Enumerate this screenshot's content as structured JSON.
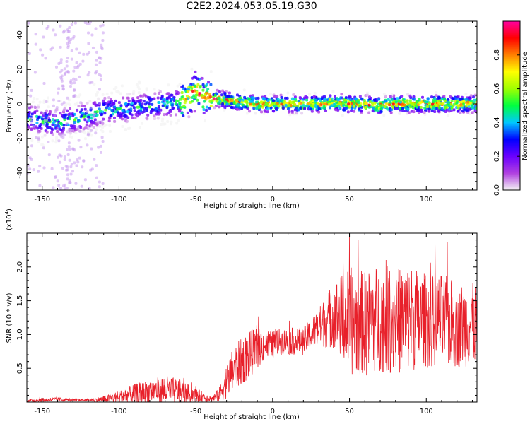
{
  "page_title": "C2E2.2024.053.05.19.G30",
  "colors": {
    "snr_line": "#e8202a",
    "axis": "#000000"
  },
  "chart_data": [
    {
      "type": "heatmap",
      "title": "",
      "xlabel": "Height of straight line (km)",
      "ylabel": "Frequency (Hz)",
      "xlim": [
        -160,
        133
      ],
      "ylim": [
        -50,
        48
      ],
      "xticks": [
        -150,
        -100,
        -50,
        0,
        50,
        100
      ],
      "yticks": [
        -40,
        -20,
        0,
        20,
        40
      ],
      "ridge": {
        "x": [
          -160,
          -150,
          -140,
          -130,
          -120,
          -110,
          -100,
          -90,
          -80,
          -70,
          -60,
          -55,
          -50,
          -45,
          -40,
          -35,
          -30,
          -20,
          -10,
          0,
          10,
          20,
          30,
          40,
          50,
          60,
          70,
          80,
          90,
          100,
          110,
          120,
          133
        ],
        "freq": [
          -8,
          -10,
          -11,
          -9,
          -7,
          -4,
          -3,
          -2,
          -1,
          0,
          1,
          5,
          8,
          4,
          3,
          3,
          2,
          1,
          0,
          0,
          0,
          0,
          0,
          1,
          0,
          0,
          -1,
          0,
          0,
          0,
          0,
          0,
          0
        ]
      },
      "colorbar": {
        "label": "Normalized spectral amplitude",
        "range": [
          0,
          1
        ],
        "ticks": [
          "0.0",
          "0.2",
          "0.4",
          "0.6",
          "0.8"
        ],
        "colormap": [
          "#f4f4f4",
          "#b040e0",
          "#6a00ff",
          "#0000ff",
          "#00c8ff",
          "#00ff40",
          "#a0ff00",
          "#ffff00",
          "#ff8000",
          "#ff0000",
          "#ff00a0"
        ]
      }
    },
    {
      "type": "line",
      "title": "",
      "xlabel": "Height of straight line (km)",
      "ylabel": "SNR (10 * v/v)",
      "y_multiplier": "(x10",
      "y_multiplier_exp": "4",
      "y_multiplier_close": ")",
      "xlim": [
        -160,
        133
      ],
      "ylim": [
        0,
        2.5
      ],
      "xticks": [
        -150,
        -100,
        -50,
        0,
        50,
        100
      ],
      "yticks": [
        "0.5",
        "1.0",
        "1.5",
        "2.0"
      ],
      "series": [
        {
          "envelope_x": [
            -160,
            -150,
            -140,
            -130,
            -120,
            -110,
            -100,
            -90,
            -80,
            -70,
            -60,
            -50,
            -40,
            -35,
            -30,
            -25,
            -20,
            -15,
            -10,
            -5,
            0,
            5,
            10,
            20,
            30,
            35,
            40,
            50,
            60,
            70,
            80,
            90,
            100,
            110,
            120,
            133
          ],
          "envelope_mean": [
            0.02,
            0.03,
            0.04,
            0.03,
            0.03,
            0.04,
            0.07,
            0.12,
            0.15,
            0.18,
            0.15,
            0.1,
            0.05,
            0.1,
            0.3,
            0.5,
            0.6,
            0.7,
            0.8,
            0.85,
            0.85,
            0.9,
            0.9,
            0.9,
            1.1,
            1.2,
            1.3,
            1.2,
            1.15,
            1.25,
            1.2,
            1.25,
            1.2,
            1.2,
            1.15,
            1.15
          ],
          "envelope_amp": [
            0.02,
            0.03,
            0.03,
            0.02,
            0.02,
            0.05,
            0.1,
            0.15,
            0.18,
            0.22,
            0.18,
            0.1,
            0.05,
            0.1,
            0.25,
            0.35,
            0.35,
            0.35,
            0.3,
            0.25,
            0.2,
            0.2,
            0.2,
            0.2,
            0.3,
            0.4,
            0.5,
            0.8,
            0.8,
            0.8,
            0.8,
            0.8,
            0.7,
            0.7,
            0.65,
            0.6
          ]
        }
      ]
    }
  ]
}
